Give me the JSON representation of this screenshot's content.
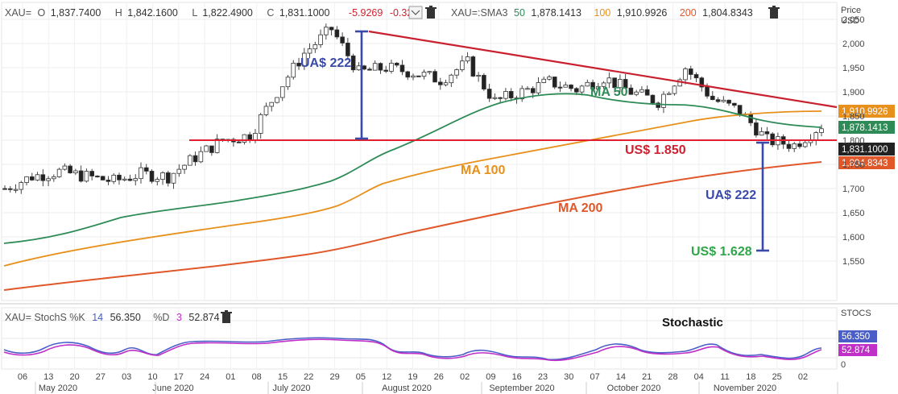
{
  "header": {
    "symbol": "XAU=",
    "o_label": "O",
    "open": "1,837.7400",
    "h_label": "H",
    "high": "1,842.1600",
    "l_label": "L",
    "low": "1,822.4900",
    "c_label": "C",
    "close": "1,831.1000",
    "change": "-5.9269",
    "change_pct": "-0.32%",
    "sma_label": "XAU=:SMA3",
    "sma50_period": "50",
    "sma50_value": "1,878.1413",
    "sma100_period": "100",
    "sma100_value": "1,910.9926",
    "sma200_period": "200",
    "sma200_value": "1,804.8343"
  },
  "price_axis": {
    "title_line1": "Price",
    "title_line2": "USD"
  },
  "stoch_header": {
    "label": "XAU= StochS %K",
    "k_period": "14",
    "k_value": "56.350",
    "d_label": "%D",
    "d_period": "3",
    "d_value": "52.874"
  },
  "stoch_axis": {
    "title": "STOCS",
    "zero_label": "0"
  },
  "colors": {
    "ma50": "#2e8b57",
    "ma100": "#e8901c",
    "ma200": "#e0572a",
    "resistance": "#c8202e",
    "support": "#e02030",
    "annotation_blue": "#3a4aa8",
    "annotation_green": "#2fa64a",
    "stoch_k": "#4a5ec8",
    "stoch_d": "#c030c8"
  },
  "annotations": {
    "ua_top": "UA$ 222",
    "ua_bottom": "UA$ 222",
    "us_1850": "US$ 1.850",
    "us_1628": "US$ 1.628",
    "ma50": "MA 50",
    "ma100": "MA 100",
    "ma200": "MA 200",
    "stochastic": "Stochastic"
  },
  "chart_data": {
    "type": "line",
    "title": "",
    "xlabel": "",
    "ylabel": "Price USD",
    "ylim": [
      1530,
      2085
    ],
    "y_ticks": [
      "1,550",
      "1,600",
      "1,650",
      "1,700",
      "1,750",
      "1,800",
      "1,850",
      "1,900",
      "1,950",
      "2,000",
      "2,050"
    ],
    "x_day_labels": [
      "06",
      "13",
      "20",
      "27",
      "03",
      "10",
      "17",
      "24",
      "01",
      "08",
      "15",
      "22",
      "29",
      "05",
      "12",
      "19",
      "26",
      "02",
      "09",
      "16",
      "23",
      "30",
      "07",
      "14",
      "21",
      "28",
      "04",
      "11",
      "18",
      "25",
      "02"
    ],
    "x_month_labels": [
      "May 2020",
      "June 2020",
      "July 2020",
      "August 2020",
      "September 2020",
      "October 2020",
      "November 2020"
    ],
    "value_tags": [
      "1,910.9926",
      "1,878.1413",
      "1,831.1000",
      "1,804.8343"
    ],
    "weekly_close_approx": [
      1700,
      1725,
      1735,
      1725,
      1715,
      1730,
      1725,
      1765,
      1800,
      1810,
      1900,
      1980,
      2030,
      1940,
      1950,
      1940,
      1925,
      1960,
      1880,
      1900,
      1920,
      1905,
      1930,
      1900,
      1880,
      1950,
      1885,
      1860,
      1800,
      1790,
      1831
    ],
    "series": [
      {
        "name": "MA 50",
        "values_approx": [
          1635,
          1645,
          1660,
          1685,
          1700,
          1710,
          1718,
          1724,
          1734,
          1748,
          1770,
          1820,
          1865,
          1900,
          1925,
          1945,
          1950,
          1945,
          1935,
          1920,
          1912,
          1910,
          1905,
          1900,
          1895,
          1892,
          1888,
          1882,
          1878,
          1878,
          1878
        ]
      },
      {
        "name": "MA 100",
        "values_approx": [
          1590,
          1605,
          1620,
          1638,
          1652,
          1662,
          1672,
          1684,
          1694,
          1704,
          1714,
          1730,
          1750,
          1785,
          1800,
          1815,
          1830,
          1840,
          1850,
          1858,
          1866,
          1875,
          1880,
          1885,
          1890,
          1896,
          1902,
          1908,
          1910,
          1911,
          1911
        ]
      },
      {
        "name": "MA 200",
        "values_approx": [
          1540,
          1546,
          1553,
          1560,
          1566,
          1574,
          1580,
          1590,
          1598,
          1606,
          1616,
          1630,
          1640,
          1655,
          1670,
          1685,
          1700,
          1715,
          1728,
          1740,
          1752,
          1762,
          1768,
          1775,
          1782,
          1789,
          1796,
          1801,
          1804,
          1805,
          1805
        ]
      }
    ],
    "resistance_line": {
      "from": [
        1,
        2080
      ],
      "to": [
        30,
        1920
      ]
    },
    "support_level": 1850,
    "target_level": 1628,
    "stochastic": {
      "k": "56.350",
      "d": "52.874",
      "ylim": [
        0,
        100
      ]
    }
  }
}
